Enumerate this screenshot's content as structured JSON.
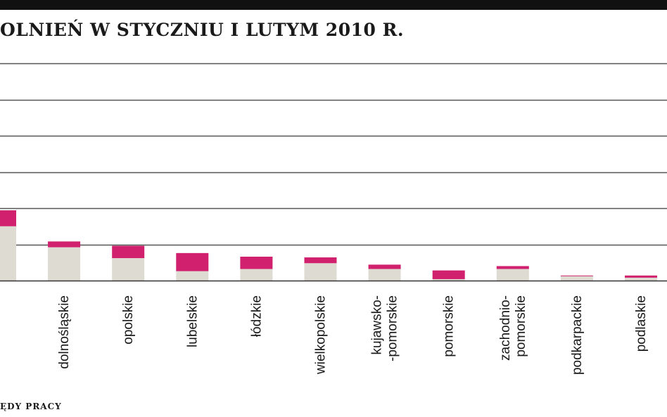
{
  "title": "OLNIEŃ W STYCZNIU I LUTYM 2010 R.",
  "source": "ĘDY PRACY",
  "colors": {
    "first": "#dedbd2",
    "second": "#d0206e",
    "grid": "#555555",
    "axis": "#333333",
    "text": "#1a1a1a"
  },
  "chart_data": {
    "type": "bar",
    "stacked": true,
    "grid": true,
    "ylim": [
      0,
      3
    ],
    "categories": [
      "",
      "dolnośląskie",
      "opolskie",
      "lubelskie",
      "łódzkie",
      "wielkopolskie",
      "kujawsko-\n-pomorskie",
      "pomorskie",
      "zachodnio-\npomorskie",
      "podkarpackie",
      "podlaskie"
    ],
    "series": [
      {
        "values": [
          0.75,
          0.46,
          0.31,
          0.13,
          0.16,
          0.24,
          0.16,
          0.02,
          0.16,
          0.06,
          0.04
        ]
      },
      {
        "values": [
          0.22,
          0.08,
          0.17,
          0.25,
          0.17,
          0.08,
          0.06,
          0.12,
          0.04,
          0.01,
          0.03
        ]
      }
    ]
  }
}
